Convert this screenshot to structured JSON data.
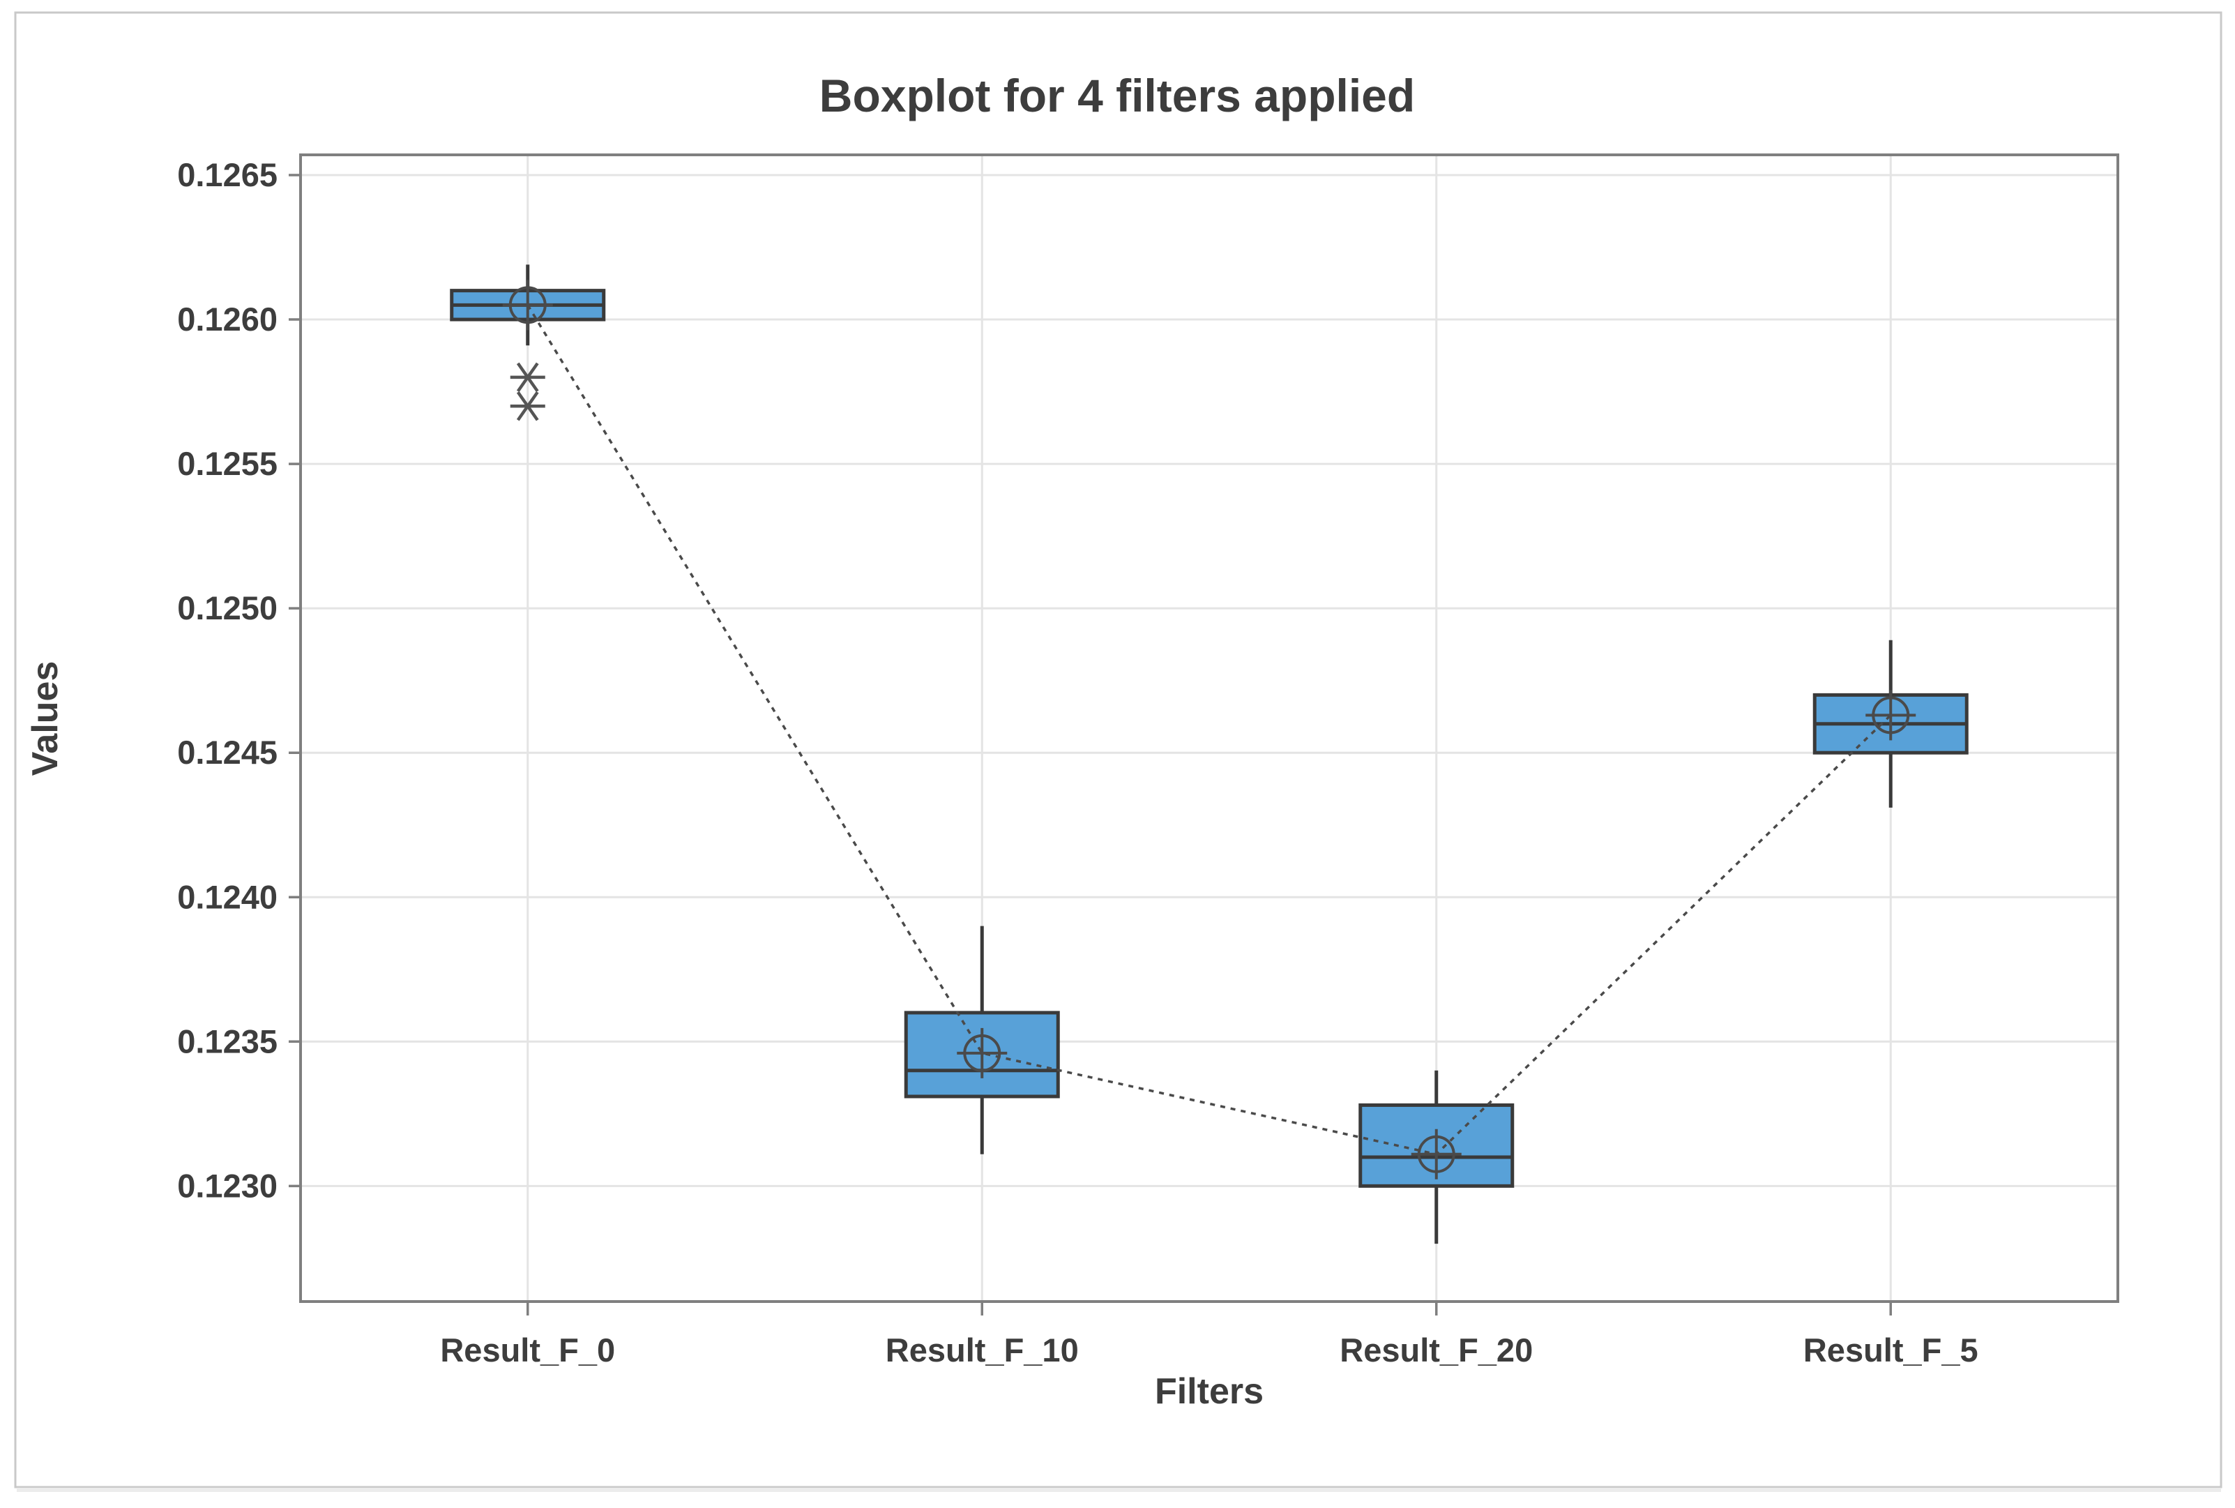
{
  "figure": {
    "title": "Boxplot for 4 filters applied",
    "x_axis_title": "Filters",
    "y_axis_title": "Values"
  },
  "chart_data": {
    "type": "boxplot",
    "title": "Boxplot for 4 filters applied",
    "xlabel": "Filters",
    "ylabel": "Values",
    "categories": [
      "Result_F_0",
      "Result_F_10",
      "Result_F_20",
      "Result_F_5"
    ],
    "series": [
      {
        "category": "Result_F_0",
        "whisker_low": 0.12591,
        "q1": 0.126,
        "median": 0.12605,
        "q3": 0.1261,
        "whisker_high": 0.12619,
        "mean": 0.12605,
        "outliers": [
          0.1258,
          0.1257
        ]
      },
      {
        "category": "Result_F_10",
        "whisker_low": 0.12311,
        "q1": 0.12331,
        "median": 0.1234,
        "q3": 0.1236,
        "whisker_high": 0.1239,
        "mean": 0.12346,
        "outliers": []
      },
      {
        "category": "Result_F_20",
        "whisker_low": 0.1228,
        "q1": 0.123,
        "median": 0.1231,
        "q3": 0.12328,
        "whisker_high": 0.1234,
        "mean": 0.12311,
        "outliers": []
      },
      {
        "category": "Result_F_5",
        "whisker_low": 0.12431,
        "q1": 0.1245,
        "median": 0.1246,
        "q3": 0.1247,
        "whisker_high": 0.12489,
        "mean": 0.12463,
        "outliers": []
      }
    ],
    "y_ticks": [
      0.1265,
      0.126,
      0.1255,
      0.125,
      0.1245,
      0.124,
      0.1235,
      0.123
    ],
    "y_tick_decimals": 4,
    "ylim": [
      0.1226,
      0.12657
    ],
    "grid": {
      "horizontal": true,
      "vertical_at_categories": true
    },
    "legend": null,
    "mean_markers": true,
    "mean_connect_line": true
  },
  "colors": {
    "box_fill": "#58A1D8",
    "box_stroke": "#3A3A3A",
    "whisker": "#3A3A3A",
    "median": "#3A3A3A",
    "mean_marker": "#4A4A4A",
    "outlier": "#555555",
    "connect_line": "#4A4A4A",
    "grid": "#E4E4E4",
    "frame": "#7F7F7F",
    "tick": "#7F7F7F",
    "text": "#3D3D3D",
    "canvas_border": "#C9C9C9",
    "canvas_shadow": "#ECECEC",
    "background": "#FFFFFF"
  }
}
